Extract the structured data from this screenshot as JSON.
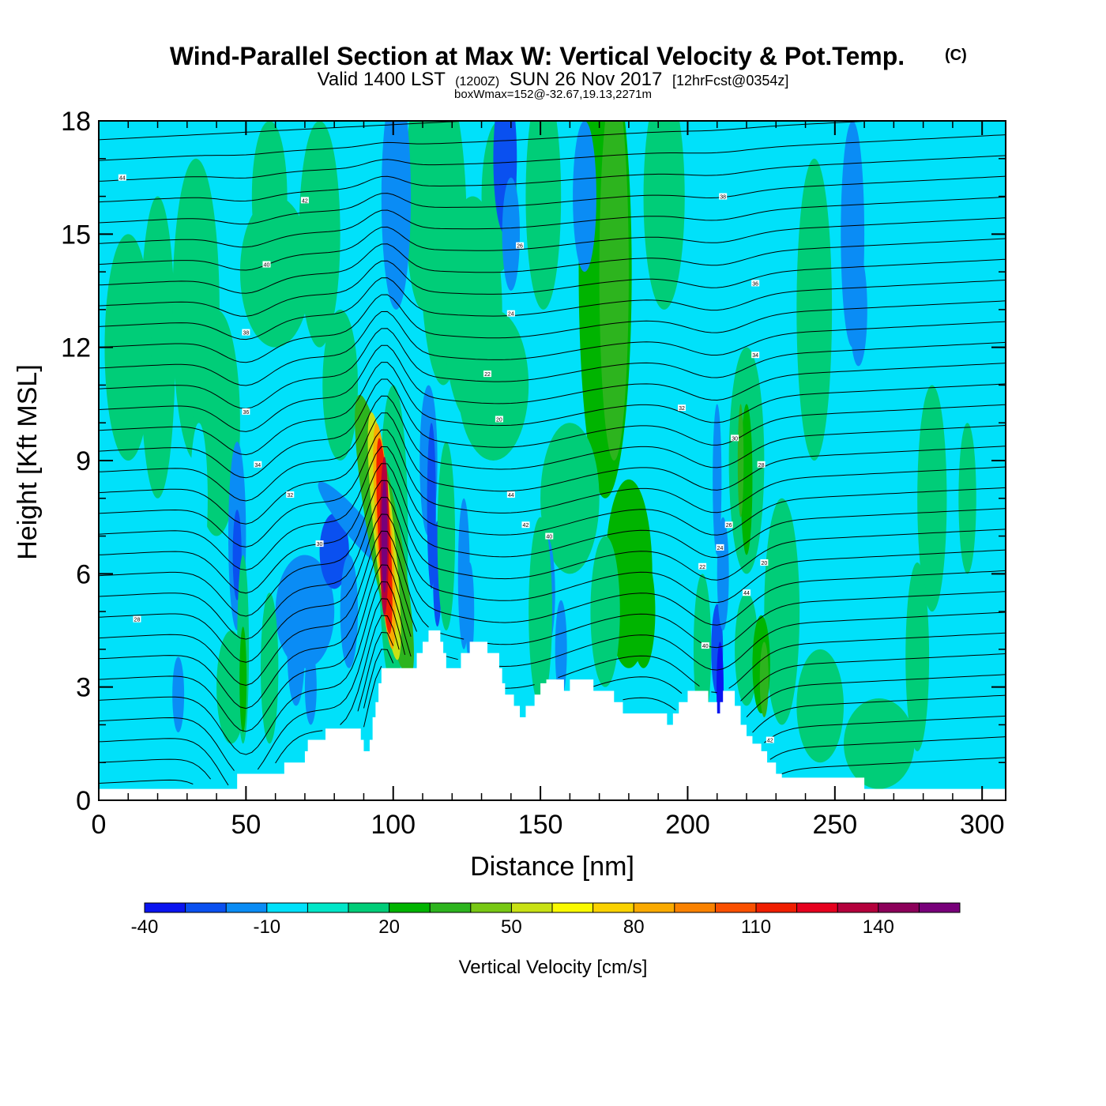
{
  "chart_data": {
    "type": "heatmap",
    "title": "Wind-Parallel Section at Max W: Vertical Velocity & Pot.Temp.",
    "title_mark": "(C)",
    "subtitle_prefix": "Valid 1400 LST",
    "subtitle_utc": "(1200Z)",
    "subtitle_date": "SUN 26 Nov 2017",
    "subtitle_fcst": "[12hrFcst@0354z]",
    "subtitle2": "boxWmax=152@-32.67,19.13,2271m",
    "xlabel": "Distance [nm]",
    "ylabel": "Height [Kft MSL]",
    "xlim": [
      0,
      308
    ],
    "ylim": [
      0,
      18
    ],
    "xticks": [
      0,
      50,
      100,
      150,
      200,
      250,
      300
    ],
    "yticks": [
      0,
      3,
      6,
      9,
      12,
      15,
      18
    ],
    "colorbar": {
      "label": "Vertical Velocity [cm/s]",
      "range": [
        -40,
        160
      ],
      "step": 10,
      "tick_labels": [
        "-40",
        "-10",
        "20",
        "50",
        "80",
        "110",
        "140"
      ],
      "tick_values": [
        -40,
        -10,
        20,
        50,
        80,
        110,
        140
      ],
      "colors": [
        "#0a14f0",
        "#0a50f0",
        "#0a8cf5",
        "#00e1fa",
        "#00e6c8",
        "#00cd78",
        "#00b400",
        "#2db41e",
        "#78c814",
        "#c8e114",
        "#fafa00",
        "#fad200",
        "#faaa00",
        "#fa8200",
        "#fa5000",
        "#f01e00",
        "#e6001e",
        "#b4003c",
        "#8c005a",
        "#78007a"
      ]
    },
    "terrain_kft": [
      [
        0,
        0.3
      ],
      [
        40,
        0.3
      ],
      [
        45,
        0.3
      ],
      [
        47,
        0.7
      ],
      [
        62,
        0.7
      ],
      [
        63,
        1.0
      ],
      [
        69,
        1.0
      ],
      [
        70,
        1.3
      ],
      [
        71,
        1.6
      ],
      [
        76,
        1.6
      ],
      [
        77,
        1.9
      ],
      [
        88,
        1.9
      ],
      [
        89,
        1.6
      ],
      [
        90,
        1.3
      ],
      [
        91,
        1.3
      ],
      [
        92,
        1.6
      ],
      [
        93,
        2.2
      ],
      [
        94,
        2.6
      ],
      [
        95,
        3.1
      ],
      [
        96,
        3.5
      ],
      [
        107,
        3.5
      ],
      [
        108,
        3.9
      ],
      [
        110,
        4.2
      ],
      [
        112,
        4.5
      ],
      [
        115,
        4.5
      ],
      [
        116,
        4.2
      ],
      [
        117,
        3.9
      ],
      [
        118,
        3.5
      ],
      [
        122,
        3.5
      ],
      [
        123,
        3.9
      ],
      [
        126,
        4.2
      ],
      [
        131,
        4.2
      ],
      [
        132,
        3.9
      ],
      [
        136,
        3.5
      ],
      [
        137,
        3.1
      ],
      [
        138,
        2.8
      ],
      [
        141,
        2.5
      ],
      [
        143,
        2.2
      ],
      [
        145,
        2.5
      ],
      [
        148,
        2.8
      ],
      [
        150,
        3.1
      ],
      [
        152,
        3.2
      ],
      [
        157,
        3.2
      ],
      [
        158,
        2.9
      ],
      [
        160,
        3.2
      ],
      [
        167,
        3.2
      ],
      [
        168,
        2.9
      ],
      [
        174,
        2.9
      ],
      [
        175,
        2.6
      ],
      [
        178,
        2.3
      ],
      [
        192,
        2.3
      ],
      [
        193,
        2.0
      ],
      [
        195,
        2.3
      ],
      [
        197,
        2.6
      ],
      [
        200,
        2.9
      ],
      [
        206,
        2.9
      ],
      [
        207,
        2.6
      ],
      [
        210,
        2.3
      ],
      [
        211,
        2.6
      ],
      [
        212,
        2.9
      ],
      [
        215,
        2.9
      ],
      [
        216,
        2.5
      ],
      [
        218,
        2.0
      ],
      [
        220,
        1.7
      ],
      [
        222,
        1.5
      ],
      [
        225,
        1.3
      ],
      [
        227,
        1.0
      ],
      [
        230,
        0.7
      ],
      [
        232,
        0.6
      ],
      [
        258,
        0.6
      ],
      [
        260,
        0.3
      ],
      [
        308,
        0.3
      ]
    ],
    "contour_labels": [
      "44",
      "42",
      "40",
      "38",
      "36",
      "34",
      "32",
      "30",
      "28",
      "26",
      "24",
      "22",
      "20"
    ],
    "annotations": [
      "Max W = 152 cm/s near x≈97 nm, 2.3–10.5 kft"
    ]
  }
}
